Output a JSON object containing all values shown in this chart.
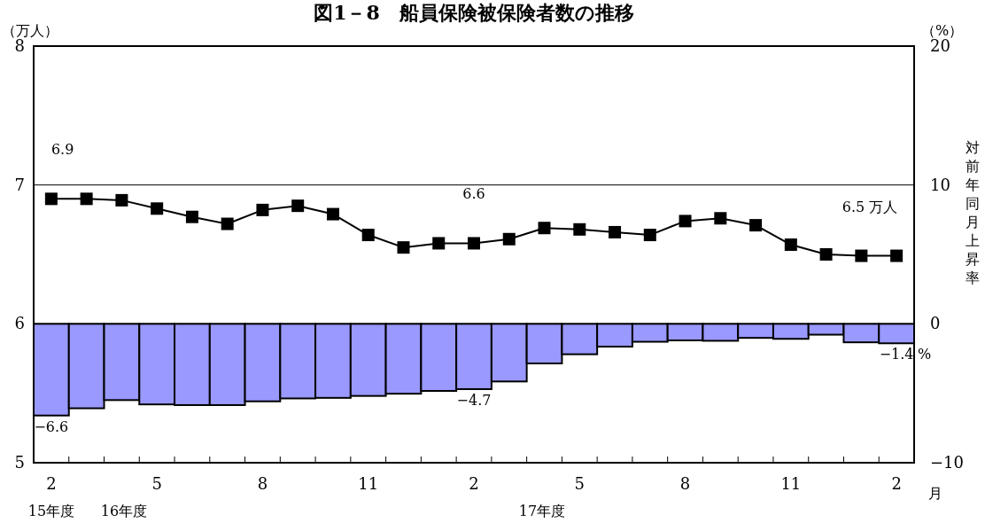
{
  "chart_data": {
    "type": "bar",
    "title": "図1－8　船員保険被保険者数の推移",
    "xlabel": "月",
    "ylabel": "（万人）",
    "y2label": "対前年同月上昇率",
    "annotations": [
      "（%）",
      "15年度",
      "16年度",
      "17年度",
      "%"
    ],
    "categories": [
      "2",
      null,
      null,
      "5",
      null,
      null,
      "8",
      null,
      null,
      "11",
      null,
      null,
      "2",
      null,
      null,
      "5",
      null,
      null,
      "8",
      null,
      null,
      "11",
      null,
      null,
      "2"
    ],
    "series": [
      {
        "axis": "y2",
        "color": "#9999ff",
        "values": [
          -6.6,
          -6.08,
          -5.49,
          -5.8,
          -5.85,
          -5.85,
          -5.58,
          -5.37,
          -5.33,
          -5.19,
          -5.03,
          -4.83,
          -4.7,
          -4.15,
          -2.85,
          -2.19,
          -1.64,
          -1.29,
          -1.19,
          -1.22,
          -1.01,
          -1.08,
          -0.78,
          -1.33,
          -1.4
        ],
        "value_labels": [
          "−6.6",
          null,
          null,
          null,
          null,
          null,
          null,
          null,
          null,
          null,
          null,
          null,
          "−4.7",
          null,
          null,
          null,
          null,
          null,
          null,
          null,
          null,
          null,
          null,
          null,
          "−1.4"
        ]
      },
      {
        "type": "line",
        "color": "#000000",
        "marker": "square",
        "values": [
          6.9,
          6.9,
          6.89,
          6.83,
          6.77,
          6.72,
          6.82,
          6.85,
          6.79,
          6.64,
          6.55,
          6.58,
          6.58,
          6.61,
          6.69,
          6.68,
          6.66,
          6.64,
          6.74,
          6.76,
          6.71,
          6.57,
          6.5,
          6.49,
          6.49
        ],
        "value_labels": [
          "6.9",
          null,
          null,
          null,
          null,
          null,
          null,
          null,
          null,
          null,
          null,
          null,
          "6.6",
          null,
          null,
          null,
          null,
          null,
          null,
          null,
          null,
          null,
          null,
          null,
          "6.5 万人"
        ]
      }
    ],
    "ylim": [
      5,
      8
    ],
    "yticks": [
      5,
      6,
      7,
      8
    ],
    "y2lim": [
      -10,
      20
    ],
    "y2ticks": [
      -10,
      0,
      10,
      20
    ],
    "grid": "y"
  }
}
